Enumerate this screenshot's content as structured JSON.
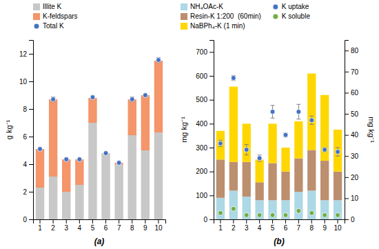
{
  "chart_data": [
    {
      "type": "bar",
      "title": "(a)",
      "stacked": true,
      "legend": "top",
      "grid": false,
      "categories": [
        1,
        2,
        3,
        4,
        5,
        6,
        7,
        8,
        9,
        10
      ],
      "ylabel": "g kg⁻¹",
      "ylim": [
        0,
        13
      ],
      "yticks": [
        0,
        2,
        4,
        6,
        8,
        10,
        12
      ],
      "series": [
        {
          "name": "Illite K",
          "color": "#C8C8C8",
          "values": [
            2.3,
            3.1,
            2.0,
            2.5,
            7.0,
            4.8,
            4.0,
            6.1,
            5.0,
            6.3
          ]
        },
        {
          "name": "K-feldspars",
          "color": "#F4956A",
          "values": [
            2.8,
            5.6,
            2.35,
            1.85,
            1.8,
            0.0,
            0.1,
            2.6,
            4.0,
            5.2
          ]
        },
        {
          "name": "Total K",
          "type": "scatter",
          "marker": "circle",
          "color": "#4472C4",
          "values": [
            5.1,
            8.7,
            4.35,
            4.35,
            8.85,
            4.8,
            4.1,
            8.7,
            9.0,
            11.55
          ],
          "errors": [
            0.08,
            0.18,
            0.12,
            0.08,
            0.12,
            0.06,
            0.07,
            0.18,
            0.07,
            0.18
          ]
        }
      ]
    },
    {
      "type": "bar",
      "title": "(b)",
      "stacked": true,
      "legend": "top",
      "grid": false,
      "categories": [
        1,
        2,
        3,
        4,
        5,
        6,
        7,
        8,
        9,
        10
      ],
      "ylabel": "mg kg⁻¹",
      "y2label": "mg kg⁻¹",
      "ylim": [
        0,
        750
      ],
      "yticks": [
        0,
        100,
        200,
        300,
        400,
        500,
        600,
        700
      ],
      "y2lim": [
        0,
        85
      ],
      "y2ticks": [
        0,
        10,
        20,
        30,
        40,
        50,
        60,
        70,
        80
      ],
      "series": [
        {
          "name": "NH₄OAc-K",
          "color": "#ADD8E6",
          "values": [
            90,
            120,
            95,
            80,
            80,
            80,
            115,
            120,
            80,
            80
          ]
        },
        {
          "name": "Resin-K 1:200  (60min)",
          "color": "#BC8F6F",
          "values": [
            160,
            120,
            145,
            75,
            155,
            120,
            140,
            170,
            165,
            120
          ]
        },
        {
          "name": "NaBPh₄-K (1 min)",
          "color": "#FFD700",
          "values": [
            120,
            315,
            160,
            95,
            165,
            100,
            155,
            320,
            275,
            175
          ]
        },
        {
          "name": "K uptake",
          "type": "scatter",
          "marker": "circle",
          "axis": "y2",
          "color": "#4472C4",
          "values": [
            36,
            67,
            33,
            29,
            51,
            40,
            51,
            47,
            33,
            32
          ],
          "errors": [
            1.5,
            1.2,
            2.5,
            1.5,
            3.0,
            1.0,
            3.5,
            2.0,
            1.0,
            2.0
          ]
        },
        {
          "name": "K soluble",
          "type": "scatter",
          "marker": "circle",
          "axis": "y2",
          "color": "#70AD47",
          "values": [
            3,
            5,
            2,
            2,
            2,
            2,
            4,
            3,
            2,
            2
          ]
        }
      ]
    }
  ]
}
